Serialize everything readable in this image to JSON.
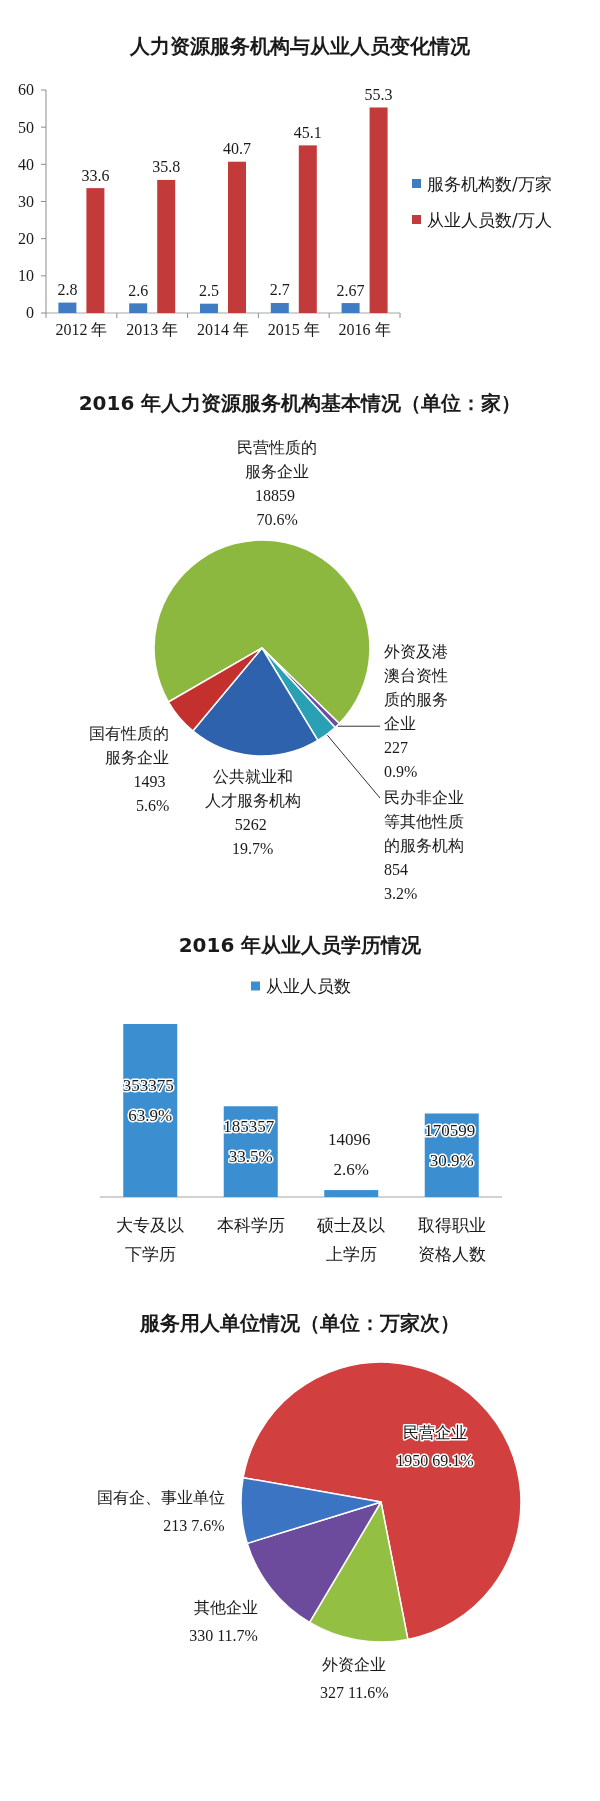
{
  "chart_data": [
    {
      "type": "bar",
      "title": "人力资源服务机构与从业人员变化情况",
      "categories": [
        "2012 年",
        "2013 年",
        "2014 年",
        "2015 年",
        "2016 年"
      ],
      "series": [
        {
          "name": "服务机构数/万家",
          "color": "#3f7cc3",
          "values": [
            2.8,
            2.6,
            2.5,
            2.7,
            2.67
          ]
        },
        {
          "name": "从业人员数/万人",
          "color": "#c23a3a",
          "values": [
            33.6,
            35.8,
            40.7,
            45.1,
            55.3
          ]
        }
      ],
      "ylim": [
        0,
        60
      ],
      "yticks": [
        0,
        10,
        20,
        30,
        40,
        50,
        60
      ],
      "data_labels": true,
      "legend": "right"
    },
    {
      "type": "pie",
      "title": "2016 年人力资源服务机构基本情况（单位：家）",
      "categories": [
        "民营性质的服务企业",
        "外资及港澳台资性质的服务企业",
        "民办非企业等其他性质的服务机构",
        "公共就业和人才服务机构",
        "国有性质的服务企业"
      ],
      "values": [
        18859,
        227,
        854,
        5262,
        1493
      ],
      "value_labels": [
        "18859\n70.6%",
        "227\n0.9%",
        "854\n3.2%",
        "5262\n19.7%",
        "1493\n5.6%"
      ],
      "colors": [
        "#8db83f",
        "#6b4ea0",
        "#2aa0b5",
        "#2f62ad",
        "#c3302e"
      ]
    },
    {
      "type": "bar",
      "title": "2016 年从业人员学历情况",
      "categories": [
        "大专及以下学历",
        "本科学历",
        "硕士及以上学历",
        "取得职业资格人数"
      ],
      "series": [
        {
          "name": "从业人员数",
          "color": "#3b8fd1",
          "values": [
            353375,
            185357,
            14096,
            170599
          ],
          "value_labels": [
            "353375\n63.9%",
            "185357\n33.5%",
            "14096\n2.6%",
            "170599\n30.9%"
          ]
        }
      ],
      "legend": "top"
    },
    {
      "type": "pie",
      "title": "服务用人单位情况（单位：万家次）",
      "categories": [
        "民营企业",
        "外资企业",
        "其他企业",
        "国有企、事业单位"
      ],
      "values": [
        1950,
        327,
        330,
        213
      ],
      "value_labels": [
        "1950 69.1%",
        "327 11.6%",
        "330 11.7%",
        "213 7.6%"
      ],
      "colors": [
        "#d23f3f",
        "#93c043",
        "#6c4a9c",
        "#3b74c2"
      ]
    }
  ]
}
